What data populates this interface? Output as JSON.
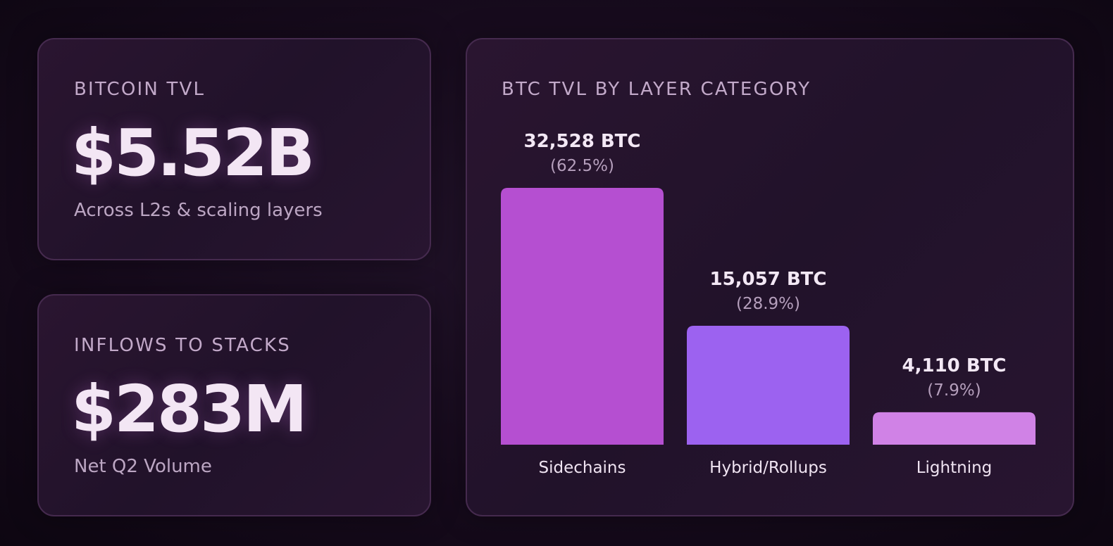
{
  "kpis": {
    "tvl": {
      "label": "BITCOIN TVL",
      "value": "$5.52B",
      "sub": "Across L2s & scaling layers"
    },
    "stacks": {
      "label": "INFLOWS TO STACKS",
      "value": "$283M",
      "sub": "Net Q2 Volume"
    }
  },
  "chart_data": {
    "type": "bar",
    "title": "BTC TVL BY LAYER CATEGORY",
    "xlabel": "",
    "ylabel": "",
    "categories": [
      "Sidechains",
      "Hybrid/Rollups",
      "Lightning"
    ],
    "values": [
      32528,
      15057,
      4110
    ],
    "value_labels": [
      "32,528 BTC",
      "15,057 BTC",
      "4,110 BTC"
    ],
    "percent_labels": [
      "(62.5%)",
      "(28.9%)",
      "(7.9%)"
    ],
    "colors": [
      "#b54fd1",
      "#9c62f0",
      "#d082e6"
    ],
    "ylim": [
      0,
      32528
    ],
    "grid": false
  }
}
